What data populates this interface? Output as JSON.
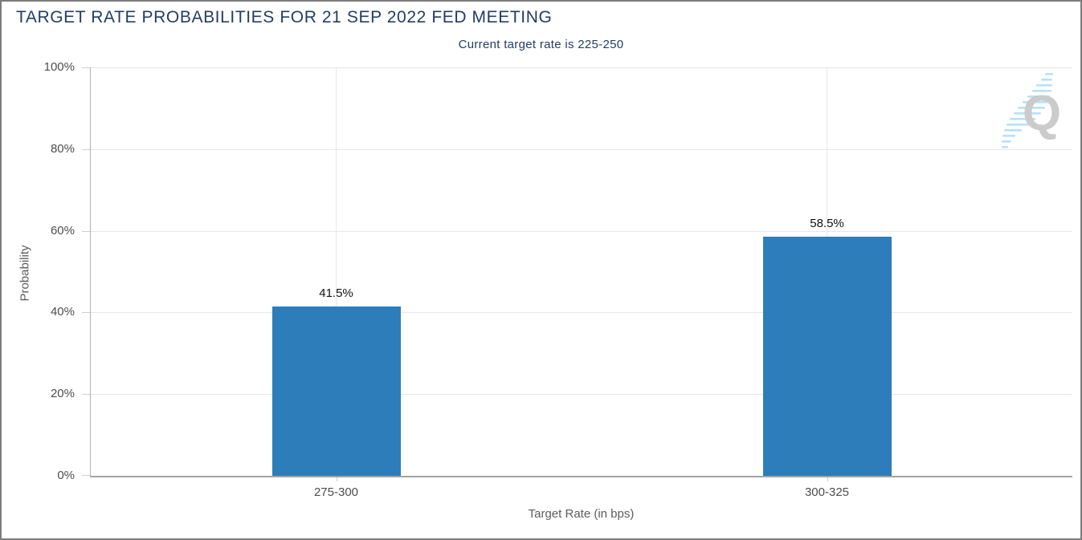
{
  "header": {
    "title": "TARGET RATE PROBABILITIES FOR 21 SEP 2022 FED MEETING",
    "subtitle": "Current target rate is 225-250"
  },
  "chart_data": {
    "type": "bar",
    "title": "TARGET RATE PROBABILITIES FOR 21 SEP 2022 FED MEETING",
    "subtitle": "Current target rate is 225-250",
    "categories": [
      "275-300",
      "300-325"
    ],
    "values": [
      41.5,
      58.5
    ],
    "value_labels": [
      "41.5%",
      "58.5%"
    ],
    "xlabel": "Target Rate (in bps)",
    "ylabel": "Probability",
    "ylim": [
      0,
      100
    ],
    "yticks": [
      "0%",
      "20%",
      "40%",
      "60%",
      "80%",
      "100%"
    ],
    "grid": true,
    "legend_position": "none",
    "bar_color": "#2c7db9"
  },
  "watermark": {
    "letter": "Q",
    "letter_color": "#c9c9c9",
    "slash_color": "#b5e0f5"
  }
}
